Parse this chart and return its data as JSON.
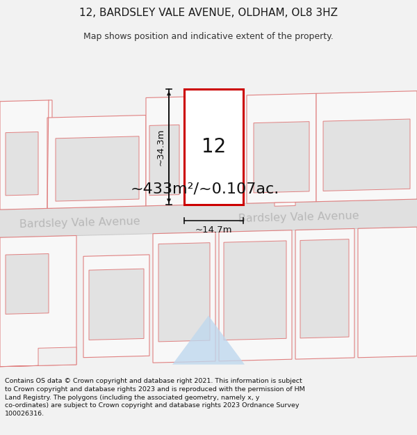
{
  "title": "12, BARDSLEY VALE AVENUE, OLDHAM, OL8 3HZ",
  "subtitle": "Map shows position and indicative extent of the property.",
  "area_text": "~433m²/~0.107ac.",
  "width_text": "~14.7m",
  "height_text": "~34.3m",
  "label_12": "12",
  "street_name_left": "Bardsley Vale Avenue",
  "street_name_right": "Bardsley Vale Avenue",
  "footer": "Contains OS data © Crown copyright and database right 2021. This information is subject to Crown copyright and database rights 2023 and is reproduced with the permission of HM Land Registry. The polygons (including the associated geometry, namely x, y co-ordinates) are subject to Crown copyright and database rights 2023 Ordnance Survey 100026316.",
  "bg_color": "#f2f2f2",
  "map_bg": "#f0f0f0",
  "plot_bg": "#e8e8e8",
  "building_fill": "#e0e0e0",
  "building_inner_fill": "#d0d0d0",
  "road_fill": "#e4e4e4",
  "building_outline_color": "#e08080",
  "highlight_color": "#cc0000",
  "footer_bg": "#ffffff",
  "triangle_color": "#bfd8ee",
  "street_text_color": "#b8b8b8",
  "dim_color": "#111111",
  "label_color": "#111111",
  "area_color": "#111111"
}
